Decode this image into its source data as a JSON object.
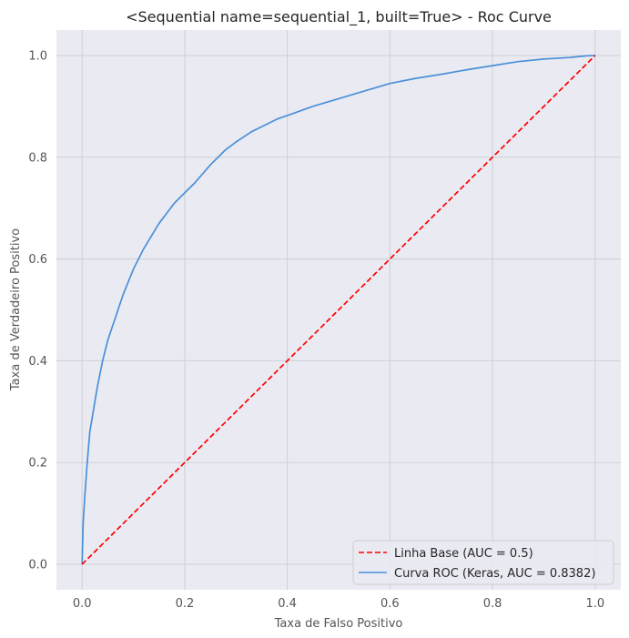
{
  "chart_data": {
    "type": "line",
    "title": "<Sequential name=sequential_1, built=True> - Roc Curve",
    "xlabel": "Taxa de Falso Positivo",
    "ylabel": "Taxa de Verdadeiro Positivo",
    "xlim": [
      -0.05,
      1.05
    ],
    "ylim": [
      -0.05,
      1.05
    ],
    "xticks": [
      "0.0",
      "0.2",
      "0.4",
      "0.6",
      "0.8",
      "1.0"
    ],
    "yticks": [
      "0.0",
      "0.2",
      "0.4",
      "0.6",
      "0.8",
      "1.0"
    ],
    "grid": true,
    "legend_position": "lower-right",
    "series": [
      {
        "name": "Linha Base (AUC = 0.5)",
        "color": "#ff0000",
        "style": "dashed",
        "x": [
          0,
          1
        ],
        "y": [
          0,
          1
        ]
      },
      {
        "name": "Curva ROC (Keras, AUC = 0.8382)",
        "color": "#4a90d9",
        "style": "solid",
        "x": [
          0,
          0.002,
          0.005,
          0.01,
          0.015,
          0.02,
          0.03,
          0.04,
          0.05,
          0.06,
          0.08,
          0.1,
          0.12,
          0.15,
          0.18,
          0.2,
          0.22,
          0.25,
          0.28,
          0.3,
          0.33,
          0.35,
          0.38,
          0.4,
          0.45,
          0.5,
          0.55,
          0.6,
          0.65,
          0.7,
          0.75,
          0.8,
          0.85,
          0.9,
          0.95,
          0.98,
          1.0
        ],
        "y": [
          0,
          0.08,
          0.13,
          0.2,
          0.26,
          0.29,
          0.35,
          0.4,
          0.44,
          0.47,
          0.53,
          0.58,
          0.62,
          0.67,
          0.71,
          0.73,
          0.75,
          0.785,
          0.815,
          0.83,
          0.85,
          0.86,
          0.875,
          0.882,
          0.9,
          0.915,
          0.93,
          0.945,
          0.955,
          0.963,
          0.972,
          0.98,
          0.988,
          0.993,
          0.996,
          0.999,
          1.0
        ]
      }
    ]
  }
}
